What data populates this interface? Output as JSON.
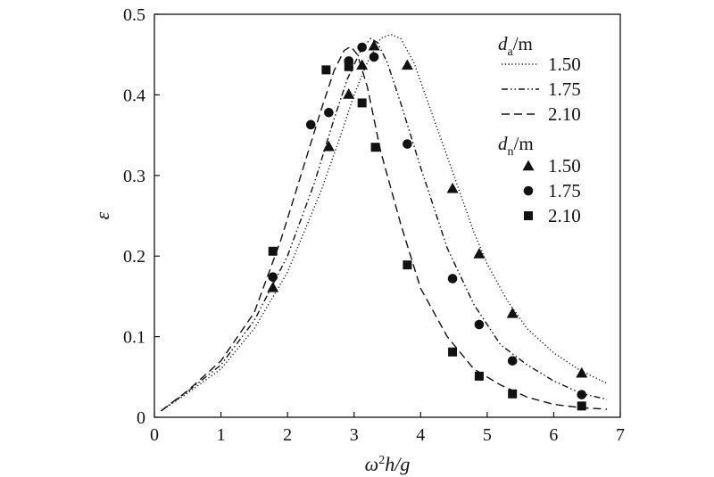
{
  "chart_data": {
    "type": "line",
    "xlabel": "ω²h/g",
    "ylabel": "ε",
    "xlim": [
      0,
      7
    ],
    "ylim": [
      0,
      0.5
    ],
    "x_ticks": [
      0,
      1,
      2,
      3,
      4,
      5,
      6,
      7
    ],
    "y_ticks": [
      0,
      0.1,
      0.2,
      0.3,
      0.4,
      0.5
    ],
    "x_tick_labels": [
      "0",
      "1",
      "2",
      "3",
      "4",
      "5",
      "6",
      "7"
    ],
    "y_tick_labels": [
      "0",
      "0.1",
      "0.2",
      "0.3",
      "0.4",
      "0.5"
    ],
    "grid": false,
    "legend_position": "top-right",
    "legend_groups": [
      {
        "title_main": "d",
        "title_sub": "a",
        "title_unit": "/m",
        "kind": "line"
      },
      {
        "title_main": "d",
        "title_sub": "n",
        "title_unit": "/m",
        "kind": "marker"
      }
    ],
    "line_series": [
      {
        "name": "1.50",
        "style": "dotted",
        "x": [
          0.1,
          0.5,
          1.0,
          1.5,
          2.0,
          2.5,
          2.8,
          3.0,
          3.2,
          3.4,
          3.55,
          3.7,
          3.9,
          4.2,
          4.5,
          4.8,
          5.0,
          5.3,
          5.6,
          6.0,
          6.4,
          6.8
        ],
        "y": [
          0.008,
          0.03,
          0.06,
          0.11,
          0.18,
          0.28,
          0.35,
          0.4,
          0.44,
          0.47,
          0.475,
          0.47,
          0.44,
          0.37,
          0.3,
          0.23,
          0.19,
          0.145,
          0.11,
          0.08,
          0.058,
          0.042
        ]
      },
      {
        "name": "1.75",
        "style": "dashdot",
        "x": [
          0.1,
          0.5,
          1.0,
          1.5,
          2.0,
          2.4,
          2.7,
          2.9,
          3.1,
          3.25,
          3.35,
          3.5,
          3.7,
          4.0,
          4.4,
          4.8,
          5.2,
          5.6,
          6.0,
          6.4,
          6.8
        ],
        "y": [
          0.008,
          0.032,
          0.065,
          0.12,
          0.2,
          0.29,
          0.37,
          0.42,
          0.455,
          0.47,
          0.465,
          0.44,
          0.39,
          0.31,
          0.21,
          0.14,
          0.09,
          0.065,
          0.045,
          0.03,
          0.022
        ]
      },
      {
        "name": "2.10",
        "style": "dashed",
        "x": [
          0.1,
          0.5,
          1.0,
          1.5,
          1.9,
          2.2,
          2.5,
          2.7,
          2.85,
          2.95,
          3.05,
          3.2,
          3.4,
          3.7,
          4.0,
          4.4,
          4.8,
          5.2,
          5.6,
          6.0,
          6.4,
          6.8
        ],
        "y": [
          0.008,
          0.033,
          0.07,
          0.13,
          0.22,
          0.3,
          0.38,
          0.43,
          0.455,
          0.46,
          0.45,
          0.41,
          0.33,
          0.24,
          0.16,
          0.1,
          0.06,
          0.04,
          0.025,
          0.016,
          0.012,
          0.01
        ]
      }
    ],
    "marker_series": [
      {
        "name": "1.50",
        "marker": "triangle",
        "x": [
          1.78,
          2.62,
          2.92,
          3.12,
          3.3,
          3.8,
          4.48,
          4.88,
          5.38,
          6.42
        ],
        "y": [
          0.161,
          0.336,
          0.401,
          0.437,
          0.461,
          0.437,
          0.284,
          0.203,
          0.129,
          0.055
        ]
      },
      {
        "name": "1.75",
        "marker": "circle",
        "x": [
          1.78,
          2.35,
          2.62,
          2.92,
          3.12,
          3.3,
          3.8,
          4.48,
          4.88,
          5.38,
          6.42
        ],
        "y": [
          0.174,
          0.363,
          0.378,
          0.442,
          0.459,
          0.447,
          0.339,
          0.172,
          0.115,
          0.07,
          0.028
        ]
      },
      {
        "name": "2.10",
        "marker": "square",
        "x": [
          1.78,
          2.58,
          2.92,
          3.12,
          3.32,
          3.8,
          4.48,
          4.88,
          5.38,
          6.42
        ],
        "y": [
          0.206,
          0.431,
          0.435,
          0.39,
          0.335,
          0.189,
          0.081,
          0.051,
          0.029,
          0.014
        ]
      }
    ]
  }
}
